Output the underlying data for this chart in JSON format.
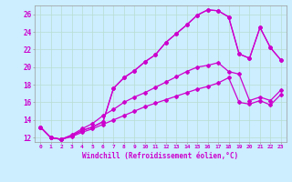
{
  "xlabel": "Windchill (Refroidissement éolien,°C)",
  "background_color": "#cceeff",
  "grid_color": "#b8ddd0",
  "line_color": "#cc00cc",
  "xlim": [
    -0.5,
    23.5
  ],
  "ylim": [
    11.5,
    27.0
  ],
  "yticks": [
    12,
    14,
    16,
    18,
    20,
    22,
    24,
    26
  ],
  "xticks": [
    0,
    1,
    2,
    3,
    4,
    5,
    6,
    7,
    8,
    9,
    10,
    11,
    12,
    13,
    14,
    15,
    16,
    17,
    18,
    19,
    20,
    21,
    22,
    23
  ],
  "top_x": [
    0,
    1,
    2,
    3,
    4,
    5,
    6,
    7,
    8,
    9,
    10,
    11,
    12,
    13,
    14,
    15,
    16,
    17,
    18,
    19,
    20,
    21,
    22,
    23
  ],
  "top_y": [
    13.2,
    12.0,
    11.8,
    12.2,
    12.8,
    13.2,
    13.8,
    17.6,
    18.8,
    19.6,
    20.6,
    21.4,
    22.8,
    23.8,
    24.8,
    25.9,
    26.5,
    26.4,
    25.7,
    21.5,
    21.0,
    24.5,
    22.2,
    20.8
  ],
  "mid1_x": [
    0,
    1,
    2,
    3,
    4,
    5,
    6,
    7,
    8,
    9,
    10,
    11,
    12,
    13,
    14,
    15,
    16,
    17,
    18,
    19,
    20,
    21,
    22,
    23
  ],
  "mid1_y": [
    13.2,
    12.0,
    11.8,
    12.2,
    12.8,
    13.2,
    13.8,
    17.6,
    18.8,
    19.6,
    20.6,
    21.4,
    22.8,
    23.8,
    24.8,
    25.9,
    26.5,
    26.4,
    25.7,
    21.5,
    21.0,
    24.5,
    22.2,
    20.8
  ],
  "mid2_x": [
    0,
    1,
    2,
    3,
    4,
    5,
    6,
    7,
    8,
    9,
    10,
    11,
    12,
    13,
    14,
    15,
    16,
    17,
    18,
    19,
    20,
    21,
    22,
    23
  ],
  "mid2_y": [
    13.2,
    12.0,
    11.8,
    12.3,
    13.0,
    13.6,
    14.5,
    15.2,
    16.0,
    16.6,
    17.1,
    17.7,
    18.3,
    18.9,
    19.5,
    20.0,
    20.2,
    20.5,
    19.5,
    19.2,
    16.2,
    16.6,
    16.2,
    17.4
  ],
  "bot_x": [
    0,
    1,
    2,
    3,
    4,
    5,
    6,
    7,
    8,
    9,
    10,
    11,
    12,
    13,
    14,
    15,
    16,
    17,
    18,
    19,
    20,
    21,
    22,
    23
  ],
  "bot_y": [
    13.2,
    12.0,
    11.8,
    12.1,
    12.6,
    13.0,
    13.5,
    14.0,
    14.5,
    15.0,
    15.5,
    15.9,
    16.3,
    16.7,
    17.1,
    17.5,
    17.8,
    18.2,
    18.8,
    16.0,
    15.8,
    16.2,
    15.7,
    16.9
  ]
}
